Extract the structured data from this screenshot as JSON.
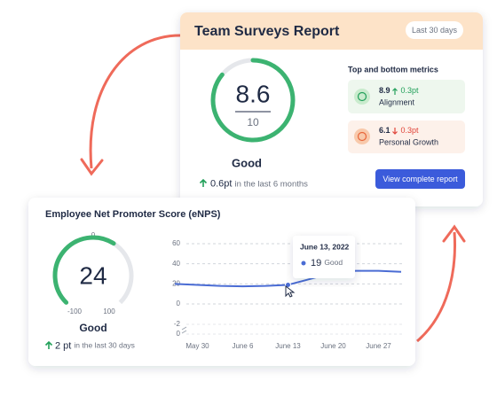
{
  "report": {
    "title": "Team Surveys Report",
    "period": "Last 30 days",
    "gauge": {
      "score": 8.6,
      "max": 10
    },
    "rating": "Good",
    "change": "0.6pt",
    "change_text": "in the last 6 months",
    "metrics_heading": "Top and bottom metrics",
    "metrics": [
      {
        "score": "8.9",
        "delta": "0.3pt",
        "name": "Alignment"
      },
      {
        "score": "6.1",
        "delta": "0.3pt",
        "name": "Personal Growth"
      }
    ],
    "button": "View complete report"
  },
  "enps": {
    "title": "Employee Net Promoter Score (eNPS)",
    "gauge": {
      "value": 24,
      "min": -100,
      "mid": 0,
      "max": 100
    },
    "rating": "Good",
    "change": "2 pt",
    "change_text": "in the last 30 days",
    "tooltip": {
      "date": "June 13, 2022",
      "label": "Good"
    }
  },
  "chart_data": {
    "type": "line",
    "categories": [
      null,
      "May 30",
      null,
      "June 6",
      null,
      "June 13",
      null,
      "June 20",
      null,
      "June 27",
      null
    ],
    "series": [
      {
        "name": "eNPS",
        "color": "#4a6cd4",
        "values": [
          20,
          19,
          18,
          17.5,
          18,
          19,
          25,
          31,
          33,
          33,
          32
        ]
      }
    ],
    "ylim": [
      0,
      60
    ],
    "yticks": [
      60,
      40,
      20,
      0
    ],
    "ybreak_ticks": [
      -2,
      0
    ],
    "highlight_index": 5,
    "grid": true
  }
}
